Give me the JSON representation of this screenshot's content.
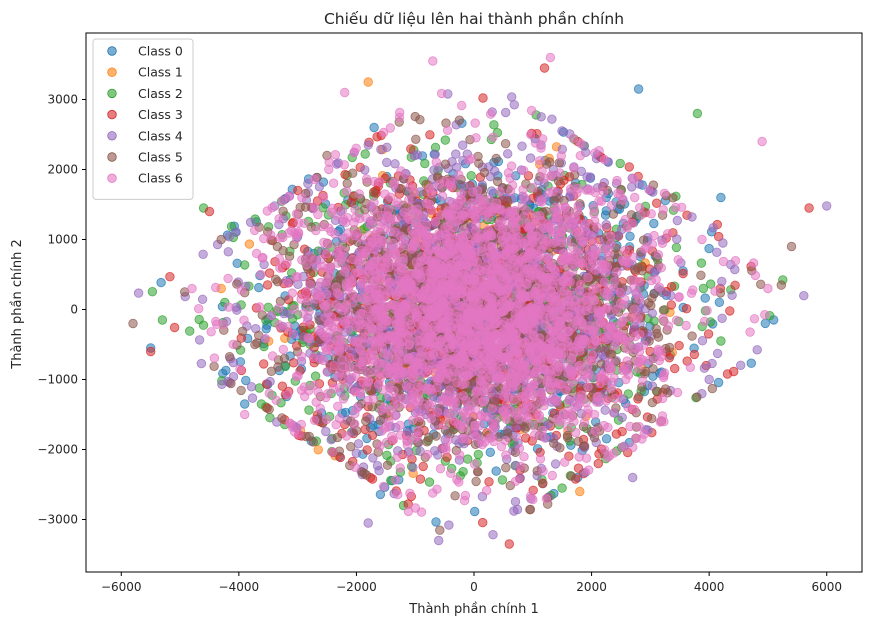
{
  "chart_data": {
    "type": "scatter",
    "title": "Chiếu dữ liệu lên hai thành phần chính",
    "xlabel": "Thành phần chính 1",
    "ylabel": "Thành phần chính 2",
    "xlim": [
      -6600,
      6600
    ],
    "ylim": [
      -3750,
      3950
    ],
    "xticks": [
      -6000,
      -4000,
      -2000,
      0,
      2000,
      4000,
      6000
    ],
    "yticks": [
      -3000,
      -2000,
      -1000,
      0,
      1000,
      2000,
      3000
    ],
    "xtick_labels": [
      "−6000",
      "−4000",
      "−2000",
      "0",
      "2000",
      "4000",
      "6000"
    ],
    "ytick_labels": [
      "−3000",
      "−2000",
      "−1000",
      "0",
      "1000",
      "2000",
      "3000"
    ],
    "grid": false,
    "legend_position": "top-left",
    "marker_alpha": 0.55,
    "series": [
      {
        "name": "Class 0",
        "color": "#1f77b4",
        "count": 700,
        "x_spread": 1700,
        "y_spread": 1050,
        "outliers": [
          [
            -5500,
            -550
          ],
          [
            2800,
            3150
          ],
          [
            -3900,
            -1350
          ],
          [
            4200,
            1600
          ],
          [
            -1700,
            2600
          ]
        ]
      },
      {
        "name": "Class 1",
        "color": "#ff7f0e",
        "count": 140,
        "x_spread": 1500,
        "y_spread": 950,
        "outliers": [
          [
            -1800,
            3250
          ],
          [
            1800,
            -2600
          ],
          [
            -4300,
            300
          ]
        ]
      },
      {
        "name": "Class 2",
        "color": "#2ca02c",
        "count": 700,
        "x_spread": 1750,
        "y_spread": 1050,
        "outliers": [
          [
            -5300,
            -150
          ],
          [
            3800,
            2800
          ],
          [
            4200,
            -450
          ],
          [
            -1200,
            -2800
          ],
          [
            -4600,
            1450
          ]
        ]
      },
      {
        "name": "Class 3",
        "color": "#d62728",
        "count": 800,
        "x_spread": 1700,
        "y_spread": 1050,
        "outliers": [
          [
            -5500,
            -600
          ],
          [
            600,
            -3350
          ],
          [
            1200,
            3450
          ],
          [
            5700,
            1450
          ],
          [
            -4500,
            1400
          ]
        ]
      },
      {
        "name": "Class 4",
        "color": "#9467bd",
        "count": 900,
        "x_spread": 1850,
        "y_spread": 1100,
        "outliers": [
          [
            6000,
            1480
          ],
          [
            -1800,
            -3050
          ],
          [
            -600,
            -3300
          ],
          [
            4000,
            -1000
          ],
          [
            2700,
            -2400
          ],
          [
            -1800,
            2350
          ]
        ]
      },
      {
        "name": "Class 5",
        "color": "#8c564b",
        "count": 1000,
        "x_spread": 1600,
        "y_spread": 1000,
        "outliers": [
          [
            -5800,
            -200
          ],
          [
            -4300,
            1000
          ],
          [
            5400,
            900
          ],
          [
            -2500,
            2200
          ]
        ]
      },
      {
        "name": "Class 6",
        "color": "#e377c2",
        "count": 2400,
        "x_spread": 1500,
        "y_spread": 950,
        "outliers": [
          [
            -700,
            3550
          ],
          [
            1300,
            3600
          ],
          [
            4900,
            2400
          ],
          [
            -3900,
            -1500
          ],
          [
            -2200,
            3100
          ],
          [
            5000,
            300
          ]
        ]
      }
    ]
  }
}
